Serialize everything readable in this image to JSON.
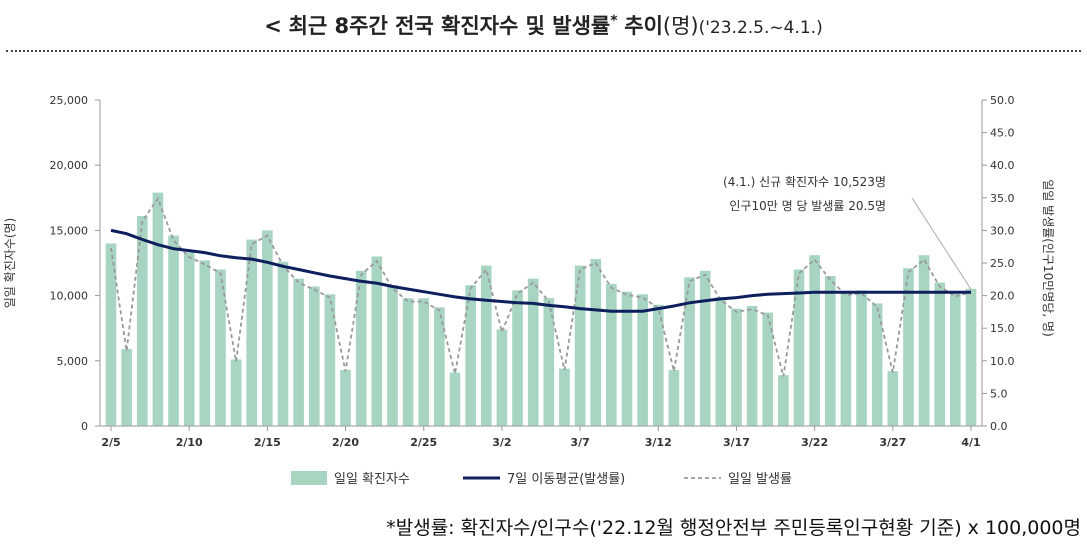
{
  "title": {
    "open": "<",
    "main": "최근 8주간 전국 확진자수 및 발생률",
    "star": "*",
    "trend": "추이",
    "unit": "(명)",
    "period": "('23.2.5.~4.1.)"
  },
  "footnote": "*발생률: 확진자수/인구수('22.12월 행정안전부 주민등록인구현황 기준) x 100,000명",
  "chart_data": {
    "type": "bar",
    "categories": [
      "2/5",
      "2/6",
      "2/7",
      "2/8",
      "2/9",
      "2/10",
      "2/11",
      "2/12",
      "2/13",
      "2/14",
      "2/15",
      "2/16",
      "2/17",
      "2/18",
      "2/19",
      "2/20",
      "2/21",
      "2/22",
      "2/23",
      "2/24",
      "2/25",
      "2/26",
      "2/27",
      "2/28",
      "3/1",
      "3/2",
      "3/3",
      "3/4",
      "3/5",
      "3/6",
      "3/7",
      "3/8",
      "3/9",
      "3/10",
      "3/11",
      "3/12",
      "3/13",
      "3/14",
      "3/15",
      "3/16",
      "3/17",
      "3/18",
      "3/19",
      "3/20",
      "3/21",
      "3/22",
      "3/23",
      "3/24",
      "3/25",
      "3/26",
      "3/27",
      "3/28",
      "3/29",
      "3/30",
      "3/31",
      "4/1"
    ],
    "tick_labels": [
      "2/5",
      "2/10",
      "2/15",
      "2/20",
      "2/25",
      "3/2",
      "3/7",
      "3/12",
      "3/17",
      "3/22",
      "3/27",
      "4/1"
    ],
    "tick_every": 5,
    "series": [
      {
        "name": "일일 확진자수",
        "kind": "bar",
        "axis": "left",
        "color": "#a8d5c2",
        "values": [
          14000,
          5900,
          16100,
          17900,
          14600,
          13300,
          12700,
          12000,
          5100,
          14300,
          15000,
          12600,
          11300,
          10700,
          10100,
          4300,
          11900,
          13000,
          10800,
          9800,
          9800,
          9100,
          4100,
          10800,
          12300,
          7400,
          10400,
          11300,
          9800,
          4400,
          12300,
          12800,
          10900,
          10300,
          10100,
          9300,
          4300,
          11400,
          11900,
          9900,
          9000,
          9200,
          8700,
          3900,
          12000,
          13100,
          11500,
          10300,
          10400,
          9400,
          4200,
          12100,
          13100,
          11000,
          10200,
          10523
        ]
      },
      {
        "name": "7일 이동평균(발생률)",
        "kind": "line",
        "axis": "right",
        "color": "#0d1f5c",
        "values": [
          30.0,
          29.5,
          28.6,
          27.8,
          27.2,
          26.9,
          26.6,
          26.1,
          25.8,
          25.6,
          25.1,
          24.5,
          24.0,
          23.5,
          23.0,
          22.6,
          22.2,
          21.9,
          21.4,
          21.0,
          20.6,
          20.2,
          19.8,
          19.5,
          19.3,
          19.1,
          18.9,
          18.8,
          18.5,
          18.3,
          18.0,
          17.8,
          17.6,
          17.6,
          17.6,
          18.0,
          18.4,
          18.9,
          19.2,
          19.5,
          19.7,
          20.0,
          20.2,
          20.3,
          20.4,
          20.5,
          20.5,
          20.5,
          20.5,
          20.5,
          20.5,
          20.5,
          20.5,
          20.5,
          20.5,
          20.5
        ]
      },
      {
        "name": "일일 발생률",
        "kind": "line-dashed",
        "axis": "right",
        "color": "#999999",
        "values": [
          27.3,
          11.5,
          31.4,
          34.9,
          28.5,
          25.9,
          24.8,
          23.4,
          9.9,
          27.9,
          29.2,
          24.6,
          22.0,
          20.9,
          19.7,
          8.4,
          23.2,
          25.3,
          21.1,
          19.1,
          19.1,
          17.7,
          8.0,
          21.1,
          24.0,
          14.4,
          20.3,
          22.0,
          19.1,
          8.6,
          24.0,
          25.0,
          21.2,
          20.1,
          19.7,
          18.1,
          8.4,
          22.2,
          23.2,
          19.3,
          17.5,
          17.9,
          17.0,
          7.6,
          23.4,
          25.5,
          22.4,
          20.1,
          20.3,
          18.3,
          8.2,
          23.6,
          25.5,
          21.4,
          19.9,
          20.5
        ]
      }
    ],
    "left_axis": {
      "label": "일일 확진자수(명)",
      "min": 0,
      "max": 25000,
      "ticks": [
        "0",
        "5,000",
        "10,000",
        "15,000",
        "20,000",
        "25,000"
      ]
    },
    "right_axis": {
      "label": "일일 발생률(인구10만명당, 명)",
      "min": 0,
      "max": 50,
      "ticks": [
        "0.0",
        "5.0",
        "10.0",
        "15.0",
        "20.0",
        "25.0",
        "30.0",
        "35.0",
        "40.0",
        "45.0",
        "50.0"
      ]
    },
    "annotation": {
      "line1": "(4.1.) 신규 확진자수 10,523명",
      "line2": "인구10만 명 당 발생률 20.5명"
    },
    "legend": {
      "position": "bottom",
      "items": [
        "일일 확진자수",
        "7일 이동평균(발생률)",
        "일일 발생률"
      ]
    }
  }
}
